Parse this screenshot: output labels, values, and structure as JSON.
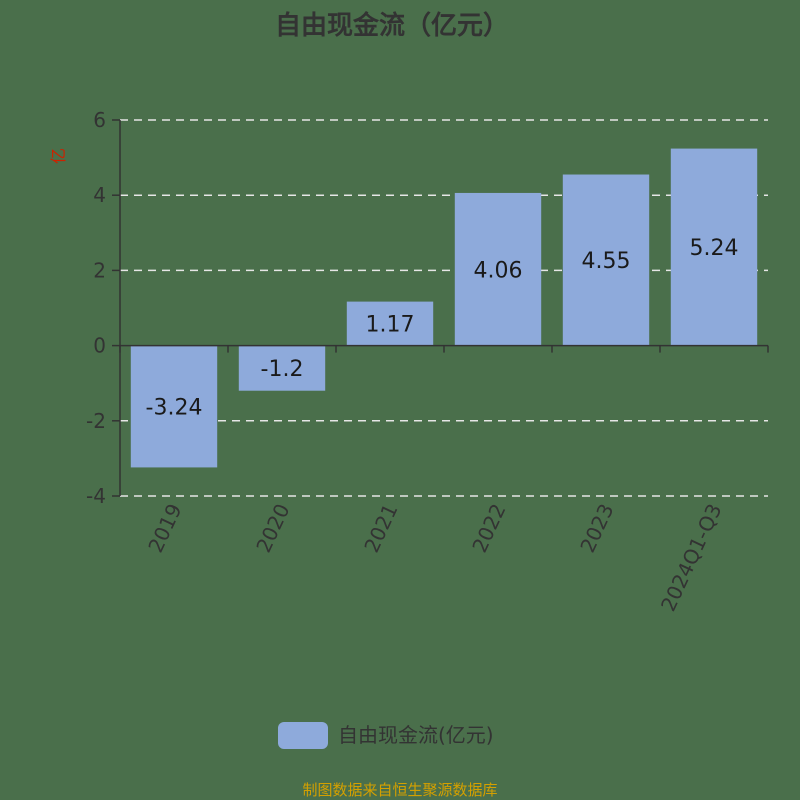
{
  "chart_data": {
    "type": "bar",
    "title": "自由现金流（亿元）",
    "ylabel": "亿",
    "categories": [
      "2019",
      "2020",
      "2021",
      "2022",
      "2023",
      "2024Q1-Q3"
    ],
    "series": [
      {
        "name": "自由现金流(亿元)",
        "values": [
          -3.24,
          -1.2,
          1.17,
          4.06,
          4.55,
          5.24
        ],
        "color": "#8eaadb"
      }
    ],
    "data_labels": [
      "-3.24",
      "-1.2",
      "1.17",
      "4.06",
      "4.55",
      "5.24"
    ],
    "yticks": [
      -4,
      -2,
      0,
      2,
      4,
      6
    ],
    "ytick_labels": [
      "-4",
      "-2",
      "0",
      "2",
      "4",
      "6"
    ],
    "ylim": [
      -4,
      6
    ],
    "grid": true,
    "legend_position": "bottom-center"
  },
  "source_text": "制图数据来自恒生聚源数据库",
  "colors": {
    "background": "#4a6f4b",
    "bar": "#8eaadb",
    "grid": "#e6e6e6",
    "axis": "#333333",
    "unit": "#cc2200",
    "source": "#d4a000"
  }
}
